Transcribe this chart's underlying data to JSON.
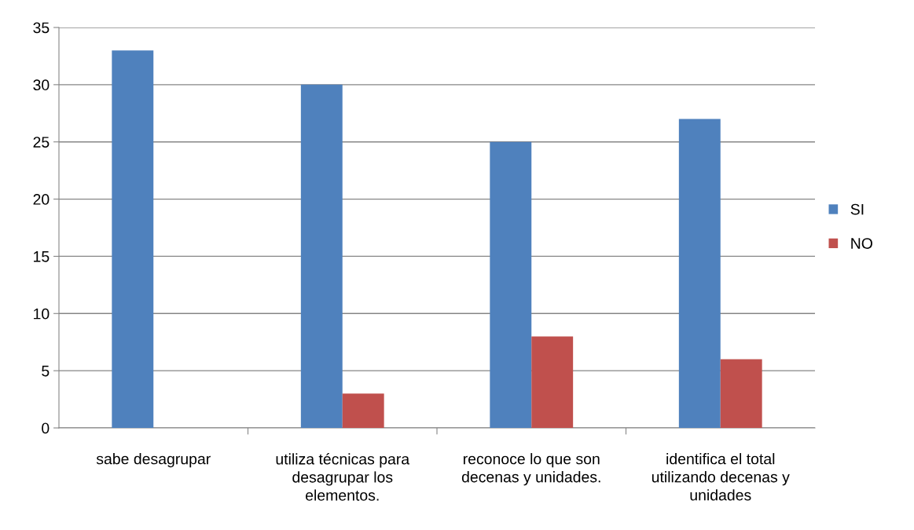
{
  "chart_data": {
    "type": "bar",
    "categories": [
      "sabe desagrupar",
      "utiliza técnicas para desagrupar los elementos.",
      "reconoce lo que son decenas y unidades.",
      "identifica el total utilizando decenas y unidades"
    ],
    "series": [
      {
        "name": "SI",
        "color": "#4f81bd",
        "values": [
          33,
          30,
          25,
          27
        ]
      },
      {
        "name": "NO",
        "color": "#c0504d",
        "values": [
          0,
          3,
          8,
          6
        ]
      }
    ],
    "ylim": [
      0,
      35
    ],
    "yticks": [
      0,
      5,
      10,
      15,
      20,
      25,
      30,
      35
    ],
    "grid": "y",
    "legend": "right"
  }
}
